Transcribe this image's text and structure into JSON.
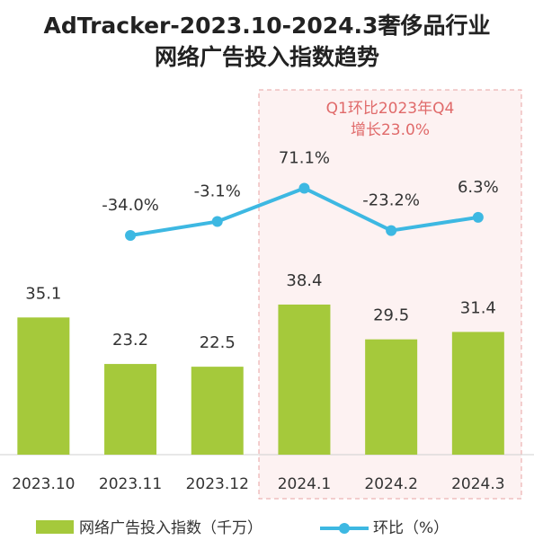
{
  "chart_data": {
    "type": "bar",
    "title": [
      "AdTracker-2023.10-2024.3奢侈品行业",
      "网络广告投入指数趋势"
    ],
    "annotation": [
      "Q1环比2023年Q4",
      "增长23.0%"
    ],
    "categories": [
      "2023.10",
      "2023.11",
      "2023.12",
      "2024.1",
      "2024.2",
      "2024.3"
    ],
    "series": [
      {
        "name": "网络广告投入指数（千万）",
        "type": "bar",
        "color": "#a5c93b",
        "values": [
          35.1,
          23.2,
          22.5,
          38.4,
          29.5,
          31.4
        ]
      },
      {
        "name": "环比（%）",
        "type": "line",
        "color": "#3db8e2",
        "values": [
          null,
          -34.0,
          -3.1,
          71.1,
          -23.2,
          6.3
        ],
        "value_labels": [
          null,
          "-34.0%",
          "-3.1%",
          "71.1%",
          "-23.2%",
          "6.3%"
        ]
      }
    ]
  }
}
